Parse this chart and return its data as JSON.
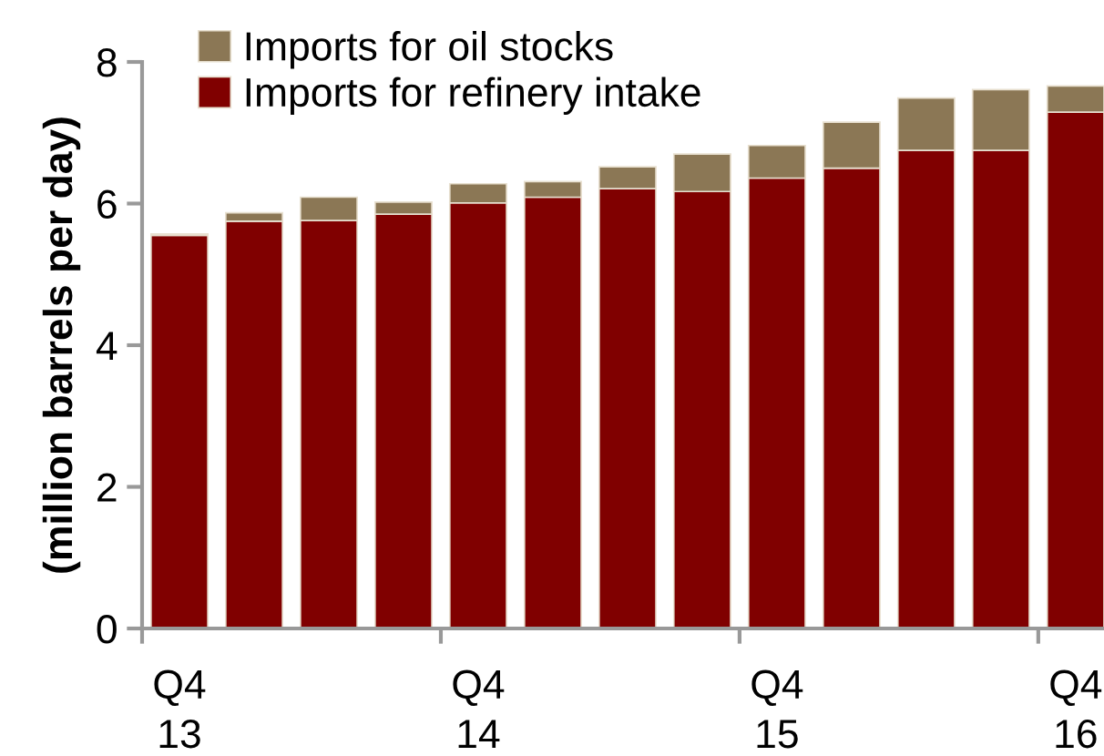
{
  "chart_data": {
    "type": "bar",
    "stacked": true,
    "ylabel": "(million barrels per day)",
    "categories": [
      "Q4\n13",
      null,
      null,
      null,
      "Q4\n14",
      null,
      null,
      null,
      "Q4\n15",
      null,
      null,
      null,
      "Q4\n16"
    ],
    "series": [
      {
        "name": "Imports for refinery intake",
        "color": "#800000",
        "values": [
          5.55,
          5.75,
          5.76,
          5.85,
          6.01,
          6.09,
          6.21,
          6.17,
          6.36,
          6.5,
          6.75,
          6.75,
          7.29
        ]
      },
      {
        "name": "Imports for oil stocks",
        "color": "#8b7755",
        "values": [
          0.02,
          0.12,
          0.33,
          0.17,
          0.27,
          0.22,
          0.31,
          0.53,
          0.46,
          0.65,
          0.74,
          0.86,
          0.37
        ]
      }
    ],
    "ylim": [
      0,
      8
    ],
    "yticks": [
      0,
      2,
      4,
      6,
      8
    ],
    "grid": false,
    "legend": "top left"
  }
}
